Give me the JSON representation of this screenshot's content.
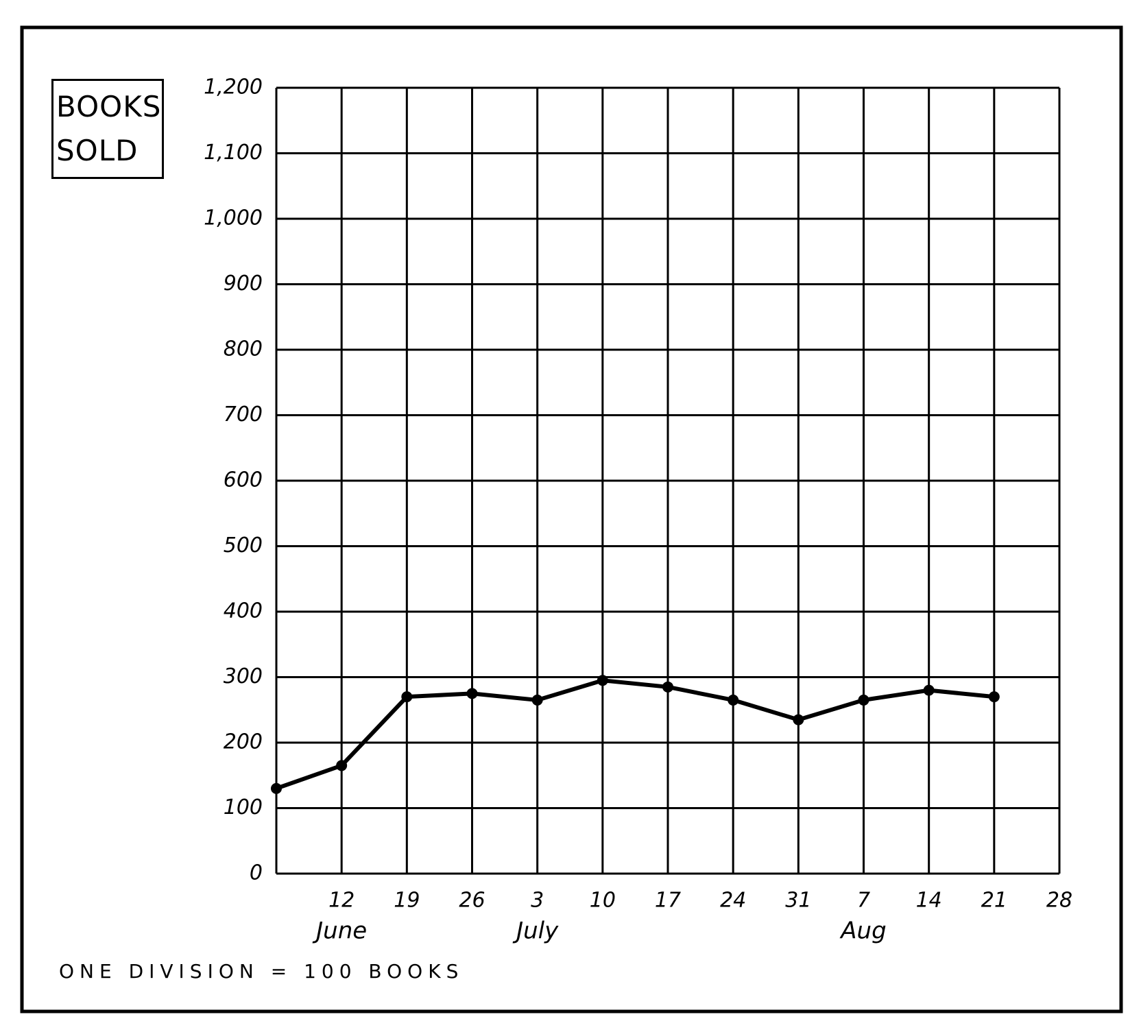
{
  "chart_data": {
    "type": "line",
    "y_label": "BOOKS SOLD",
    "note": "ONE DIVISION = 100 BOOKS",
    "categories": [
      null,
      "12",
      "19",
      "26",
      "3",
      "10",
      "17",
      "24",
      "31",
      "7",
      "14",
      "21",
      "28"
    ],
    "month_labels": [
      null,
      "June",
      null,
      null,
      "July",
      null,
      null,
      null,
      null,
      "Aug",
      null,
      null,
      null
    ],
    "series": [
      {
        "color": "#000000",
        "values": [
          130,
          165,
          270,
          275,
          265,
          295,
          285,
          265,
          235,
          265,
          280,
          270,
          null
        ]
      }
    ],
    "ylim": [
      0,
      1200
    ],
    "yticks": [
      0,
      100,
      200,
      300,
      400,
      500,
      600,
      700,
      800,
      900,
      {
        "value": 1000,
        "label": "1,000"
      },
      {
        "value": 1100,
        "label": "1,100"
      },
      {
        "value": 1200,
        "label": "1,200"
      }
    ],
    "grid": true
  }
}
